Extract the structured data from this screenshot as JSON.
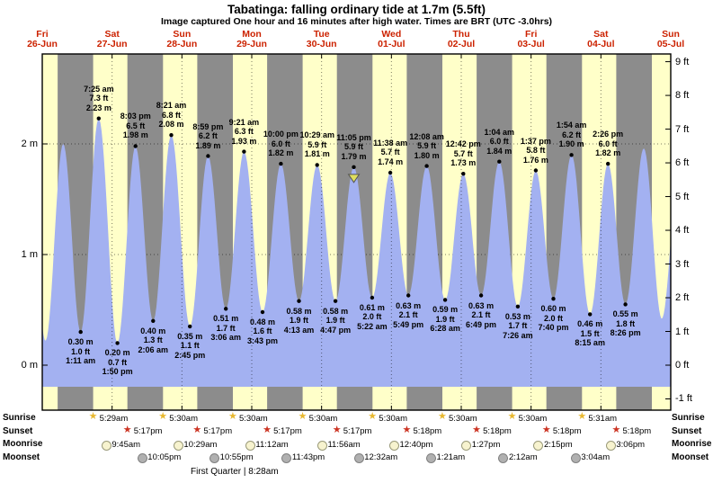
{
  "title": "Tabatinga: falling ordinary tide at 1.7m (5.5ft)",
  "subtitle": "Image captured One hour and 16 minutes after high water. Times are BRT (UTC -3.0hrs)",
  "colors": {
    "night_band": "#8c8c8c",
    "day_band": "#ffffc9",
    "water": "#a3b1f1",
    "day_label": "#cc2200",
    "marker": "#dede5e",
    "sunrise_star": "#e8b830",
    "sunset_star": "#cc3322",
    "moonrise_fill": "#f7f3cf",
    "moonset_fill": "#b0b0b0"
  },
  "days": [
    {
      "wd": "Fri",
      "date": "26-Jun"
    },
    {
      "wd": "Sat",
      "date": "27-Jun"
    },
    {
      "wd": "Sun",
      "date": "28-Jun"
    },
    {
      "wd": "Mon",
      "date": "29-Jun"
    },
    {
      "wd": "Tue",
      "date": "30-Jun"
    },
    {
      "wd": "Wed",
      "date": "01-Jul"
    },
    {
      "wd": "Thu",
      "date": "02-Jul"
    },
    {
      "wd": "Fri",
      "date": "03-Jul"
    },
    {
      "wd": "Sat",
      "date": "04-Jul"
    },
    {
      "wd": "Sun",
      "date": "05-Jul"
    }
  ],
  "y_axis_left": {
    "unit": "m",
    "labels": [
      "2 m",
      "1 m",
      "0 m"
    ],
    "values": [
      2,
      1,
      0
    ]
  },
  "y_axis_right": {
    "unit": "ft",
    "labels": [
      "9 ft",
      "8 ft",
      "7 ft",
      "6 ft",
      "5 ft",
      "4 ft",
      "3 ft",
      "2 ft",
      "1 ft",
      "0 ft",
      "-1 ft"
    ],
    "values": [
      9,
      8,
      7,
      6,
      5,
      4,
      3,
      2,
      1,
      0,
      -1
    ]
  },
  "chart_data": {
    "type": "area",
    "title": "Tabatinga tide height",
    "x_axis": "time, Fri 26-Jun 12:00 through Sun 05-Jul 12:00 (t = hours since Fri 26-Jun 00:00)",
    "y_axis": "tide height (m / ft)",
    "y_range_m": [
      -0.4,
      2.8
    ],
    "daylight": {
      "sunrise_hour": 5.5,
      "sunset_hour": 17.28
    },
    "events": [
      {
        "t": 6.6,
        "h": 2.2,
        "type": "high",
        "labeled": false,
        "estimated": true
      },
      {
        "t": 13.1,
        "h": 0.22,
        "type": "low",
        "labeled": false,
        "estimated": true
      },
      {
        "t": 19.2,
        "h": 2.0,
        "type": "high",
        "labeled": false,
        "estimated": true
      },
      {
        "t": 25.18,
        "h": 0.3,
        "type": "low",
        "labeled": true,
        "m": "0.30 m",
        "ft": "1.0 ft",
        "time": "1:11 am"
      },
      {
        "t": 31.42,
        "h": 2.23,
        "type": "high",
        "labeled": true,
        "m": "2.23 m",
        "ft": "7.3 ft",
        "time": "7:25 am"
      },
      {
        "t": 37.83,
        "h": 0.2,
        "type": "low",
        "labeled": true,
        "m": "0.20 m",
        "ft": "0.7 ft",
        "time": "1:50 pm"
      },
      {
        "t": 44.05,
        "h": 1.98,
        "type": "high",
        "labeled": true,
        "m": "1.98 m",
        "ft": "6.5 ft",
        "time": "8:03 pm"
      },
      {
        "t": 50.1,
        "h": 0.4,
        "type": "low",
        "labeled": true,
        "m": "0.40 m",
        "ft": "1.3 ft",
        "time": "2:06 am"
      },
      {
        "t": 56.35,
        "h": 2.08,
        "type": "high",
        "labeled": true,
        "m": "2.08 m",
        "ft": "6.8 ft",
        "time": "8:21 am"
      },
      {
        "t": 62.75,
        "h": 0.35,
        "type": "low",
        "labeled": true,
        "m": "0.35 m",
        "ft": "1.1 ft",
        "time": "2:45 pm"
      },
      {
        "t": 68.98,
        "h": 1.89,
        "type": "high",
        "labeled": true,
        "m": "1.89 m",
        "ft": "6.2 ft",
        "time": "8:59 pm"
      },
      {
        "t": 75.1,
        "h": 0.51,
        "type": "low",
        "labeled": true,
        "m": "0.51 m",
        "ft": "1.7 ft",
        "time": "3:06 am"
      },
      {
        "t": 81.35,
        "h": 1.93,
        "type": "high",
        "labeled": true,
        "m": "1.93 m",
        "ft": "6.3 ft",
        "time": "9:21 am"
      },
      {
        "t": 87.72,
        "h": 0.48,
        "type": "low",
        "labeled": true,
        "m": "0.48 m",
        "ft": "1.6 ft",
        "time": "3:43 pm"
      },
      {
        "t": 94.0,
        "h": 1.82,
        "type": "high",
        "labeled": true,
        "m": "1.82 m",
        "ft": "6.0 ft",
        "time": "10:00 pm"
      },
      {
        "t": 100.22,
        "h": 0.58,
        "type": "low",
        "labeled": true,
        "m": "0.58 m",
        "ft": "1.9 ft",
        "time": "4:13 am"
      },
      {
        "t": 106.48,
        "h": 1.81,
        "type": "high",
        "labeled": true,
        "m": "1.81 m",
        "ft": "5.9 ft",
        "time": "10:29 am"
      },
      {
        "t": 112.78,
        "h": 0.58,
        "type": "low",
        "labeled": true,
        "m": "0.58 m",
        "ft": "1.9 ft",
        "time": "4:47 pm"
      },
      {
        "t": 119.08,
        "h": 1.79,
        "type": "high",
        "labeled": true,
        "m": "1.79 m",
        "ft": "5.9 ft",
        "time": "11:05 pm",
        "marker": true
      },
      {
        "t": 125.37,
        "h": 0.61,
        "type": "low",
        "labeled": true,
        "m": "0.61 m",
        "ft": "2.0 ft",
        "time": "5:22 am"
      },
      {
        "t": 131.63,
        "h": 1.74,
        "type": "high",
        "labeled": true,
        "m": "1.74 m",
        "ft": "5.7 ft",
        "time": "11:38 am"
      },
      {
        "t": 137.82,
        "h": 0.63,
        "type": "low",
        "labeled": true,
        "m": "0.63 m",
        "ft": "2.1 ft",
        "time": "5:49 pm"
      },
      {
        "t": 144.13,
        "h": 1.8,
        "type": "high",
        "labeled": true,
        "m": "1.80 m",
        "ft": "5.9 ft",
        "time": "12:08 am"
      },
      {
        "t": 150.47,
        "h": 0.59,
        "type": "low",
        "labeled": true,
        "m": "0.59 m",
        "ft": "1.9 ft",
        "time": "6:28 am"
      },
      {
        "t": 156.7,
        "h": 1.73,
        "type": "high",
        "labeled": true,
        "m": "1.73 m",
        "ft": "5.7 ft",
        "time": "12:42 pm"
      },
      {
        "t": 162.82,
        "h": 0.63,
        "type": "low",
        "labeled": true,
        "m": "0.63 m",
        "ft": "2.1 ft",
        "time": "6:49 pm"
      },
      {
        "t": 169.07,
        "h": 1.84,
        "type": "high",
        "labeled": true,
        "m": "1.84 m",
        "ft": "6.0 ft",
        "time": "1:04 am"
      },
      {
        "t": 175.43,
        "h": 0.53,
        "type": "low",
        "labeled": true,
        "m": "0.53 m",
        "ft": "1.7 ft",
        "time": "7:26 am"
      },
      {
        "t": 181.62,
        "h": 1.76,
        "type": "high",
        "labeled": true,
        "m": "1.76 m",
        "ft": "5.8 ft",
        "time": "1:37 pm"
      },
      {
        "t": 187.67,
        "h": 0.6,
        "type": "low",
        "labeled": true,
        "m": "0.60 m",
        "ft": "2.0 ft",
        "time": "7:40 pm"
      },
      {
        "t": 193.9,
        "h": 1.9,
        "type": "high",
        "labeled": true,
        "m": "1.90 m",
        "ft": "6.2 ft",
        "time": "1:54 am"
      },
      {
        "t": 200.25,
        "h": 0.46,
        "type": "low",
        "labeled": true,
        "m": "0.46 m",
        "ft": "1.5 ft",
        "time": "8:15 am"
      },
      {
        "t": 206.43,
        "h": 1.82,
        "type": "high",
        "labeled": true,
        "m": "1.82 m",
        "ft": "6.0 ft",
        "time": "2:26 pm"
      },
      {
        "t": 212.43,
        "h": 0.55,
        "type": "low",
        "labeled": true,
        "m": "0.55 m",
        "ft": "1.8 ft",
        "time": "8:26 pm"
      },
      {
        "t": 218.75,
        "h": 1.96,
        "type": "high",
        "labeled": false,
        "estimated": true
      },
      {
        "t": 224.92,
        "h": 0.42,
        "type": "low",
        "labeled": false,
        "estimated": true
      },
      {
        "t": 231.2,
        "h": 1.9,
        "type": "high",
        "labeled": false,
        "estimated": true
      }
    ]
  },
  "astro": {
    "rows": [
      {
        "label": "Sunrise",
        "icon": "sunrise-star-icon",
        "entries": [
          {
            "d": 1,
            "time": "5:29am"
          },
          {
            "d": 2,
            "time": "5:30am"
          },
          {
            "d": 3,
            "time": "5:30am"
          },
          {
            "d": 4,
            "time": "5:30am"
          },
          {
            "d": 5,
            "time": "5:30am"
          },
          {
            "d": 6,
            "time": "5:30am"
          },
          {
            "d": 7,
            "time": "5:30am"
          },
          {
            "d": 8,
            "time": "5:31am"
          }
        ]
      },
      {
        "label": "Sunset",
        "icon": "sunset-star-icon",
        "entries": [
          {
            "d": 1,
            "time": "5:17pm"
          },
          {
            "d": 2,
            "time": "5:17pm"
          },
          {
            "d": 3,
            "time": "5:17pm"
          },
          {
            "d": 4,
            "time": "5:17pm"
          },
          {
            "d": 5,
            "time": "5:18pm"
          },
          {
            "d": 6,
            "time": "5:18pm"
          },
          {
            "d": 7,
            "time": "5:18pm"
          },
          {
            "d": 8,
            "time": "5:18pm"
          }
        ]
      },
      {
        "label": "Moonrise",
        "icon": "moonrise-icon",
        "entries": [
          {
            "d": 1,
            "time": "9:45am"
          },
          {
            "d": 2,
            "time": "10:29am"
          },
          {
            "d": 3,
            "time": "11:12am"
          },
          {
            "d": 4,
            "time": "11:56am"
          },
          {
            "d": 5,
            "time": "12:40pm"
          },
          {
            "d": 6,
            "time": "1:27pm"
          },
          {
            "d": 7,
            "time": "2:15pm"
          },
          {
            "d": 8,
            "time": "3:06pm"
          }
        ]
      },
      {
        "label": "Moonset",
        "icon": "moonset-icon",
        "entries": [
          {
            "d": 1,
            "time": "10:05pm"
          },
          {
            "d": 2,
            "time": "10:55pm"
          },
          {
            "d": 3,
            "time": "11:43pm"
          },
          {
            "d": 5,
            "time": "12:32am"
          },
          {
            "d": 6,
            "time": "1:21am"
          },
          {
            "d": 7,
            "time": "2:12am"
          },
          {
            "d": 8,
            "time": "3:04am"
          }
        ]
      }
    ],
    "footer": "First Quarter | 8:28am"
  }
}
